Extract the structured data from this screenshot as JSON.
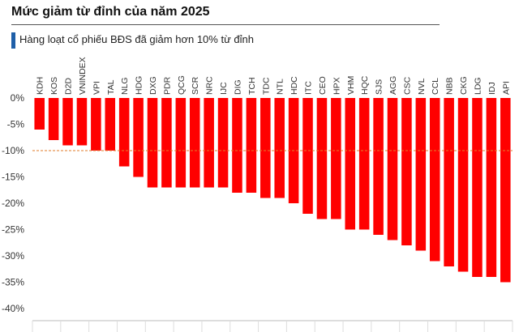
{
  "header": {
    "title": "Mức giảm từ đỉnh của năm 2025",
    "subtitle": "Hàng loạt cổ phiếu BĐS đã giảm hơn 10% từ đỉnh"
  },
  "chart_data": {
    "type": "bar",
    "title": "Mức giảm từ đỉnh của năm 2025",
    "subtitle": "Hàng loạt cổ phiếu BĐS đã giảm hơn 10% từ đỉnh",
    "categories": [
      "KDH",
      "KOS",
      "D2D",
      "VNINDEX",
      "VPI",
      "TAL",
      "NLG",
      "HDG",
      "DXG",
      "PDR",
      "QCG",
      "SCR",
      "NRC",
      "IJC",
      "DIG",
      "TCH",
      "TDC",
      "NTL",
      "HDC",
      "ITC",
      "CEO",
      "HPX",
      "VHM",
      "HQC",
      "SJS",
      "AGG",
      "CSC",
      "NVL",
      "CCL",
      "NBB",
      "CKG",
      "LDG",
      "IDJ",
      "API"
    ],
    "values": [
      -6,
      -8,
      -9,
      -9,
      -10,
      -10,
      -13,
      -15,
      -17,
      -17,
      -17,
      -17,
      -17,
      -17,
      -18,
      -18,
      -19,
      -19,
      -20,
      -22,
      -23,
      -23,
      -25,
      -25,
      -26,
      -27,
      -28,
      -29,
      -31,
      -32,
      -33,
      -34,
      -34,
      -35
    ],
    "ylim": [
      -40,
      0
    ],
    "yticks": [
      0,
      -5,
      -10,
      -15,
      -20,
      -25,
      -30,
      -35,
      -40
    ],
    "ytick_labels": [
      "0%",
      "-5%",
      "-10%",
      "-15%",
      "-20%",
      "-25%",
      "-30%",
      "-35%",
      "-40%"
    ],
    "reference_line": -10,
    "grid": false,
    "colors": {
      "bar": "#ff0000",
      "reference_line": "#e07b2a",
      "axis": "#bbbbbb"
    }
  }
}
